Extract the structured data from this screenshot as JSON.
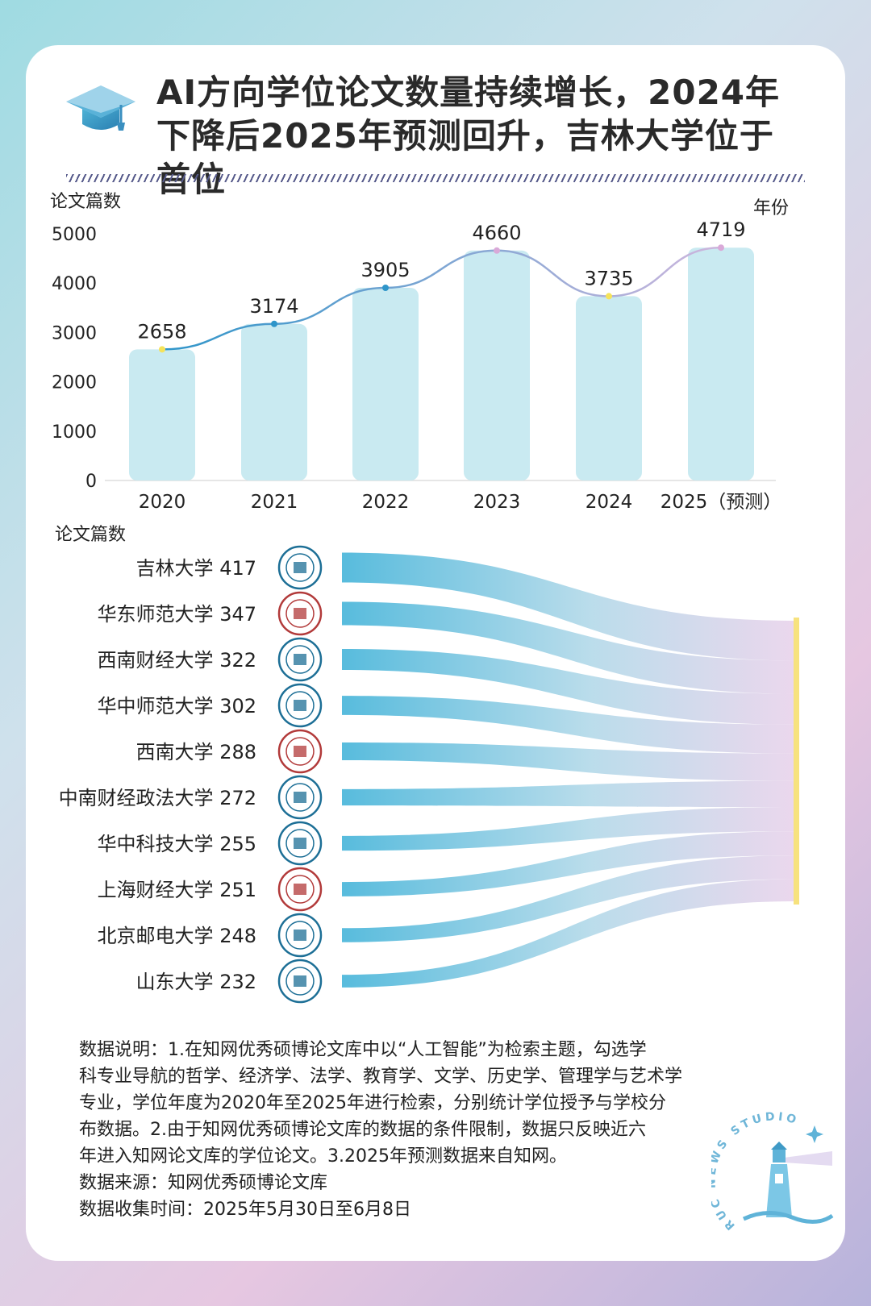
{
  "title": "AI方向学位论文数量持续增长，2024年下降后2025年预测回升，吉林大学位于首位",
  "icons": {
    "title": "graduation-cap-icon",
    "watermark": "lighthouse-logo"
  },
  "colors": {
    "bar": "#c9eaf1",
    "line_start": "#2e95c9",
    "line_end": "#cdb6dd",
    "flow_start": "#4fb8db",
    "flow_end": "#ead5ec",
    "target_bar": "#f7e27e",
    "dot_yellow": "#f5e35a",
    "dot_blue": "#2e95c9",
    "dot_purple": "#d9a9d8"
  },
  "chart_data": [
    {
      "type": "bar",
      "ylabel": "论文篇数",
      "xlabel": "年份",
      "categories": [
        "2020",
        "2021",
        "2022",
        "2023",
        "2024",
        "2025（预测）"
      ],
      "values": [
        2658,
        3174,
        3905,
        4660,
        3735,
        4719
      ],
      "data_labels": [
        "2658",
        "3174",
        "3905",
        "4660",
        "3735",
        "4719"
      ],
      "yticks": [
        "0",
        "1000",
        "2000",
        "3000",
        "4000",
        "5000"
      ],
      "ylim": [
        0,
        5000
      ],
      "overlay_line": true,
      "grid": false
    },
    {
      "type": "sankey",
      "ylabel": "论文篇数",
      "universities": [
        {
          "name": "吉林大学",
          "value": 417,
          "label": "吉林大学 417",
          "seal": "jilin-university-seal-icon"
        },
        {
          "name": "华东师范大学",
          "value": 347,
          "label": "华东师范大学 347",
          "seal": "ecnu-seal-icon"
        },
        {
          "name": "西南财经大学",
          "value": 322,
          "label": "西南财经大学 322",
          "seal": "swufe-seal-icon"
        },
        {
          "name": "华中师范大学",
          "value": 302,
          "label": "华中师范大学 302",
          "seal": "ccnu-seal-icon"
        },
        {
          "name": "西南大学",
          "value": 288,
          "label": "西南大学 288",
          "seal": "swu-seal-icon"
        },
        {
          "name": "中南财经政法大学",
          "value": 272,
          "label": "中南财经政法大学 272",
          "seal": "zuel-seal-icon"
        },
        {
          "name": "华中科技大学",
          "value": 255,
          "label": "华中科技大学 255",
          "seal": "hust-seal-icon"
        },
        {
          "name": "上海财经大学",
          "value": 251,
          "label": "上海财经大学 251",
          "seal": "sufe-seal-icon"
        },
        {
          "name": "北京邮电大学",
          "value": 248,
          "label": "北京邮电大学 248",
          "seal": "bupt-seal-icon"
        },
        {
          "name": "山东大学",
          "value": 232,
          "label": "山东大学 232",
          "seal": "sdu-seal-icon"
        }
      ]
    }
  ],
  "notes": [
    "数据说明：1.在知网优秀硕博论文库中以“人工智能”为检索主题，勾选学",
    "科专业导航的哲学、经济学、法学、教育学、文学、历史学、管理学与艺术学",
    "专业，学位年度为2020年至2025年进行检索，分别统计学位授予与学校分",
    "布数据。2.由于知网优秀硕博论文库的数据的条件限制，数据只反映近六",
    "年进入知网论文库的学位论文。3.2025年预测数据来自知网。",
    "数据来源：知网优秀硕博论文库",
    "数据收集时间：2025年5月30日至6月8日"
  ],
  "watermark_text": "RUC NEWS STUDIO"
}
